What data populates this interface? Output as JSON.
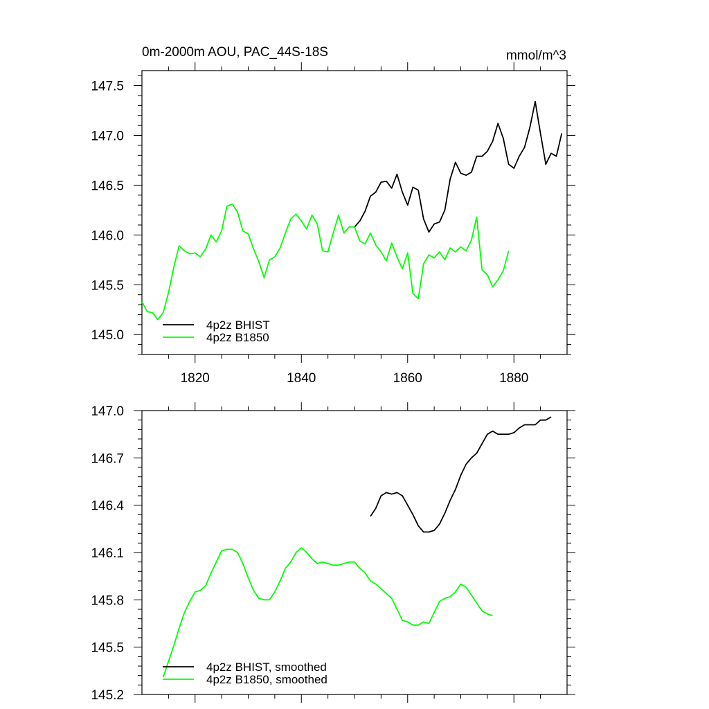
{
  "figure": {
    "title_left": "0m-2000m AOU, PAC_44S-18S",
    "title_right": "mmol/m^3"
  },
  "colors": {
    "bhist": "#000000",
    "b1850": "#00ff00"
  },
  "chart_data": [
    {
      "type": "line",
      "title": "0m-2000m AOU, PAC_44S-18S",
      "units": "mmol/m^3",
      "xlim": [
        1810,
        1890
      ],
      "ylim": [
        144.8,
        147.65
      ],
      "xticks": [
        1820,
        1840,
        1860,
        1880
      ],
      "xtick_labels": [
        "1820",
        "1840",
        "1860",
        "1880"
      ],
      "yticks": [
        145.0,
        145.5,
        146.0,
        146.5,
        147.0,
        147.5
      ],
      "ytick_labels": [
        "145.0",
        "145.5",
        "146.0",
        "146.5",
        "147.0",
        "147.5"
      ],
      "legend_position": "bottom-left",
      "series": [
        {
          "name": "4p2z BHIST",
          "color": "#000000",
          "x": [
            1850,
            1851,
            1852,
            1853,
            1854,
            1855,
            1856,
            1857,
            1858,
            1859,
            1860,
            1861,
            1862,
            1863,
            1864,
            1865,
            1866,
            1867,
            1868,
            1869,
            1870,
            1871,
            1872,
            1873,
            1874,
            1875,
            1876,
            1877,
            1878,
            1879,
            1880,
            1881,
            1882,
            1883,
            1884,
            1885,
            1886,
            1887,
            1888,
            1889
          ],
          "values": [
            146.08,
            146.14,
            146.24,
            146.39,
            146.43,
            146.53,
            146.54,
            146.47,
            146.61,
            146.43,
            146.3,
            146.48,
            146.45,
            146.16,
            146.03,
            146.11,
            146.13,
            146.25,
            146.56,
            146.73,
            146.62,
            146.6,
            146.63,
            146.79,
            146.79,
            146.84,
            146.94,
            147.12,
            146.97,
            146.71,
            146.67,
            146.79,
            146.88,
            147.08,
            147.34,
            147.02,
            146.71,
            146.82,
            146.79,
            147.02
          ]
        },
        {
          "name": "4p2z B1850",
          "color": "#00ff00",
          "x": [
            1810,
            1811,
            1812,
            1813,
            1814,
            1815,
            1816,
            1817,
            1818,
            1819,
            1820,
            1821,
            1822,
            1823,
            1824,
            1825,
            1826,
            1827,
            1828,
            1829,
            1830,
            1831,
            1832,
            1833,
            1834,
            1835,
            1836,
            1837,
            1838,
            1839,
            1840,
            1841,
            1842,
            1843,
            1844,
            1845,
            1846,
            1847,
            1848,
            1849,
            1850,
            1851,
            1852,
            1853,
            1854,
            1855,
            1856,
            1857,
            1858,
            1859,
            1860,
            1861,
            1862,
            1863,
            1864,
            1865,
            1866,
            1867,
            1868,
            1869,
            1870,
            1871,
            1872,
            1873,
            1874,
            1875,
            1876,
            1877,
            1878,
            1879
          ],
          "values": [
            145.33,
            145.23,
            145.22,
            145.15,
            145.22,
            145.42,
            145.68,
            145.89,
            145.84,
            145.81,
            145.82,
            145.78,
            145.86,
            146.0,
            145.93,
            146.04,
            146.29,
            146.31,
            146.23,
            146.04,
            146.01,
            145.86,
            145.73,
            145.57,
            145.75,
            145.78,
            145.87,
            146.02,
            146.16,
            146.21,
            146.14,
            146.06,
            146.2,
            146.11,
            145.84,
            145.83,
            146.02,
            146.2,
            146.02,
            146.08,
            146.08,
            145.94,
            145.91,
            146.02,
            145.9,
            145.83,
            145.74,
            145.92,
            145.78,
            145.66,
            145.82,
            145.41,
            145.36,
            145.71,
            145.8,
            145.77,
            145.83,
            145.75,
            145.87,
            145.83,
            145.88,
            145.84,
            145.95,
            146.18,
            145.65,
            145.6,
            145.48,
            145.55,
            145.64,
            145.84
          ]
        }
      ]
    },
    {
      "type": "line",
      "xlim": [
        1810,
        1890
      ],
      "ylim": [
        145.2,
        147.0
      ],
      "xticks": [
        1820,
        1840,
        1860,
        1880
      ],
      "yticks": [
        145.2,
        145.5,
        145.8,
        146.1,
        146.4,
        146.7,
        147.0
      ],
      "ytick_labels": [
        "145.2",
        "145.5",
        "145.8",
        "146.1",
        "146.4",
        "146.7",
        "147.0"
      ],
      "legend_position": "bottom-left",
      "series": [
        {
          "name": "4p2z BHIST, smoothed",
          "color": "#000000",
          "x": [
            1853,
            1854,
            1855,
            1856,
            1857,
            1858,
            1859,
            1860,
            1861,
            1862,
            1863,
            1864,
            1865,
            1866,
            1867,
            1868,
            1869,
            1870,
            1871,
            1872,
            1873,
            1874,
            1875,
            1876,
            1877,
            1878,
            1879,
            1880,
            1881,
            1882,
            1883,
            1884,
            1885,
            1886,
            1887
          ],
          "values": [
            146.33,
            146.38,
            146.46,
            146.48,
            146.47,
            146.48,
            146.46,
            146.4,
            146.34,
            146.27,
            146.23,
            146.23,
            146.24,
            146.28,
            146.35,
            146.43,
            146.5,
            146.59,
            146.66,
            146.7,
            146.73,
            146.79,
            146.85,
            146.87,
            146.85,
            146.85,
            146.85,
            146.86,
            146.89,
            146.91,
            146.91,
            146.91,
            146.94,
            146.94,
            146.96
          ]
        },
        {
          "name": "4p2z B1850, smoothed",
          "color": "#00ff00",
          "x": [
            1814,
            1815,
            1816,
            1817,
            1818,
            1819,
            1820,
            1821,
            1822,
            1823,
            1824,
            1825,
            1826,
            1827,
            1828,
            1829,
            1830,
            1831,
            1832,
            1833,
            1834,
            1835,
            1836,
            1837,
            1838,
            1839,
            1840,
            1841,
            1842,
            1843,
            1844,
            1845,
            1846,
            1847,
            1848,
            1849,
            1850,
            1851,
            1852,
            1853,
            1854,
            1855,
            1856,
            1857,
            1858,
            1859,
            1860,
            1861,
            1862,
            1863,
            1864,
            1865,
            1866,
            1867,
            1868,
            1869,
            1870,
            1871,
            1872,
            1873,
            1874,
            1875,
            1876
          ],
          "values": [
            145.31,
            145.41,
            145.51,
            145.62,
            145.72,
            145.79,
            145.85,
            145.86,
            145.89,
            145.97,
            146.04,
            146.11,
            146.12,
            146.12,
            146.1,
            146.03,
            145.94,
            145.86,
            145.81,
            145.8,
            145.8,
            145.85,
            145.92,
            146.0,
            146.04,
            146.1,
            146.13,
            146.1,
            146.06,
            146.03,
            146.04,
            146.03,
            146.02,
            146.02,
            146.03,
            146.04,
            146.04,
            146.0,
            145.97,
            145.92,
            145.9,
            145.87,
            145.84,
            145.81,
            145.74,
            145.67,
            145.66,
            145.64,
            145.64,
            145.66,
            145.65,
            145.72,
            145.79,
            145.81,
            145.82,
            145.85,
            145.9,
            145.88,
            145.83,
            145.78,
            145.73,
            145.71,
            145.7
          ]
        }
      ]
    }
  ]
}
